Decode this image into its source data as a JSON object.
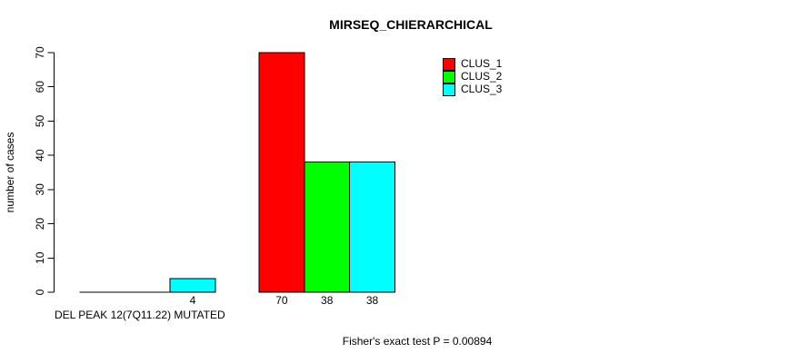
{
  "title": "MIRSEQ_CHIERARCHICAL",
  "y_axis_label": "number of cases",
  "x_axis_label": "DEL PEAK 12(7Q11.22) MUTATED",
  "footer_note": "Fisher's exact test P = 0.00894",
  "colors": {
    "clus_1": "#FF0000",
    "clus_2": "#00FF00",
    "clus_3": "#00FFFF",
    "axis": "#000000",
    "background": "#FFFFFF"
  },
  "chart_data": {
    "type": "bar",
    "title": "MIRSEQ_CHIERARCHICAL",
    "xlabel": "DEL PEAK 12(7Q11.22) MUTATED",
    "ylabel": "number of cases",
    "annotation": "Fisher's exact test P = 0.00894",
    "ylim": [
      0,
      70
    ],
    "yticks": [
      0,
      10,
      20,
      30,
      40,
      50,
      60,
      70
    ],
    "grid": false,
    "legend_position": "top-right",
    "series": [
      {
        "name": "CLUS_1",
        "color": "#FF0000",
        "values": [
          0,
          70
        ]
      },
      {
        "name": "CLUS_2",
        "color": "#00FF00",
        "values": [
          0,
          38
        ]
      },
      {
        "name": "CLUS_3",
        "color": "#00FFFF",
        "values": [
          4,
          38
        ]
      }
    ],
    "bar_labels": [
      [
        "",
        "",
        "4"
      ],
      [
        "70",
        "38",
        "38"
      ]
    ]
  }
}
